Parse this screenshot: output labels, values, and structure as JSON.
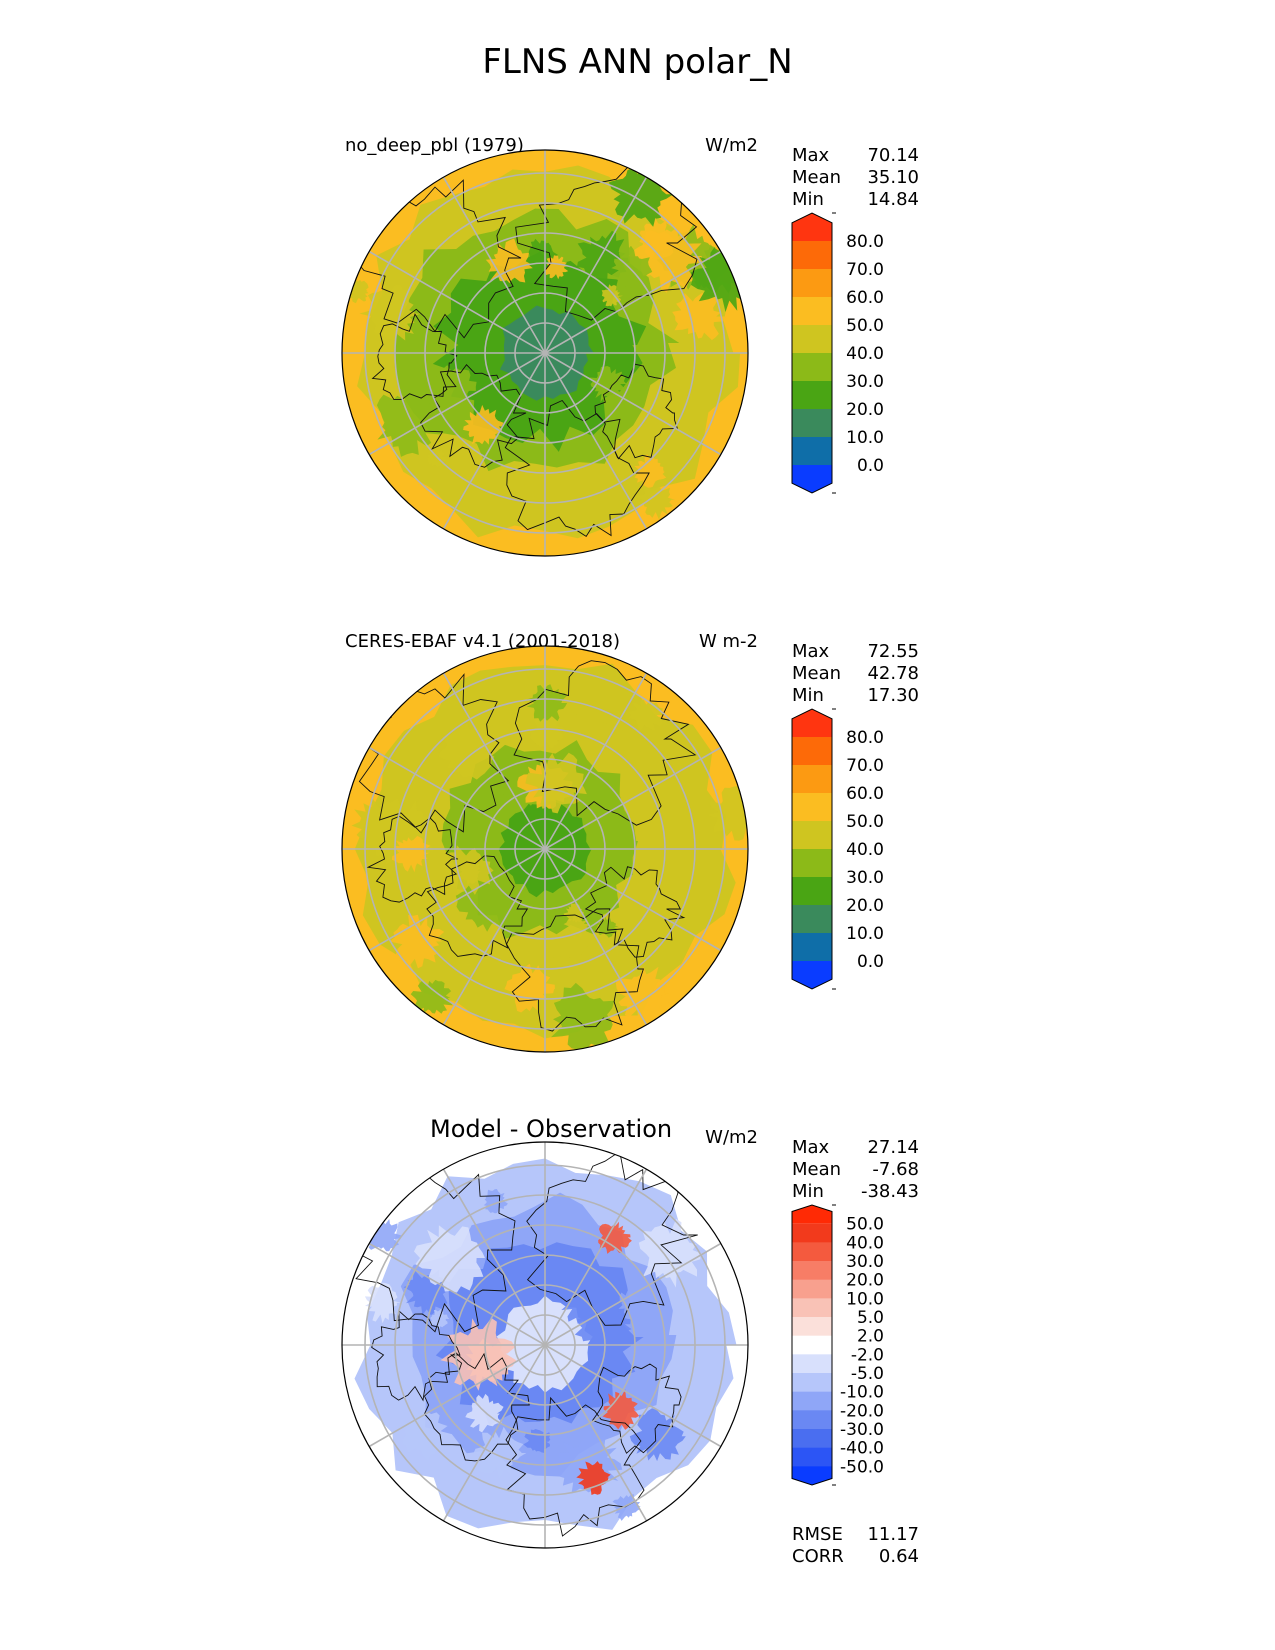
{
  "title": "FLNS ANN polar_N",
  "panels": [
    {
      "id": "model",
      "left_title": "no_deep_pbl (1979)",
      "units": "W/m2",
      "stats": [
        {
          "label": "Max",
          "value": "70.14"
        },
        {
          "label": "Mean",
          "value": "35.10"
        },
        {
          "label": "Min",
          "value": "14.84"
        }
      ]
    },
    {
      "id": "obs",
      "left_title": "CERES-EBAF v4.1 (2001-2018)",
      "units": "W m-2",
      "stats": [
        {
          "label": "Max",
          "value": "72.55"
        },
        {
          "label": "Mean",
          "value": "42.78"
        },
        {
          "label": "Min",
          "value": "17.30"
        }
      ]
    },
    {
      "id": "diff",
      "center_title": "Model - Observation",
      "units": "W/m2",
      "stats": [
        {
          "label": "Max",
          "value": "27.14"
        },
        {
          "label": "Mean",
          "value": "-7.68"
        },
        {
          "label": "Min",
          "value": "-38.43"
        }
      ],
      "extra_stats": [
        {
          "label": "RMSE",
          "value": "11.17"
        },
        {
          "label": "CORR",
          "value": "0.64"
        }
      ]
    }
  ],
  "chart_data": [
    {
      "type": "heatmap",
      "projection": "north polar stereographic",
      "colorbar": {
        "levels": [
          "0.0",
          "10.0",
          "20.0",
          "30.0",
          "40.0",
          "50.0",
          "60.0",
          "70.0",
          "80.0"
        ],
        "colors": [
          "#0a3cff",
          "#0f6ea8",
          "#3a8a5c",
          "#4aa514",
          "#8cba18",
          "#cfc520",
          "#fbbd21",
          "#fc9a12",
          "#fd6a08",
          "#ff3510"
        ],
        "extend": "both"
      },
      "colors_main": {
        "pole": "#3a8a5c",
        "inner": "#4aa514",
        "mid": "#8cba18",
        "outer": "#cfc520",
        "edge": "#fbbd21"
      }
    },
    {
      "type": "heatmap",
      "projection": "north polar stereographic",
      "colorbar": {
        "levels": [
          "0.0",
          "10.0",
          "20.0",
          "30.0",
          "40.0",
          "50.0",
          "60.0",
          "70.0",
          "80.0"
        ],
        "colors": [
          "#0a3cff",
          "#0f6ea8",
          "#3a8a5c",
          "#4aa514",
          "#8cba18",
          "#cfc520",
          "#fbbd21",
          "#fc9a12",
          "#fd6a08",
          "#ff3510"
        ],
        "extend": "both"
      },
      "colors_main": {
        "pole": "#4aa514",
        "inner": "#8cba18",
        "mid": "#cfc520",
        "outer": "#cfc520",
        "edge": "#fbbd21"
      }
    },
    {
      "type": "heatmap",
      "projection": "north polar stereographic",
      "colorbar": {
        "levels": [
          "-50.0",
          "-40.0",
          "-30.0",
          "-20.0",
          "-10.0",
          "-5.0",
          "-2.0",
          "2.0",
          "5.0",
          "10.0",
          "20.0",
          "30.0",
          "40.0",
          "50.0"
        ],
        "colors": [
          "#0a3cff",
          "#2c55f5",
          "#4a6ef0",
          "#6a88f3",
          "#8fa6f7",
          "#b6c6fa",
          "#d8e0fc",
          "#ffffff",
          "#fbe0da",
          "#f9c2b6",
          "#f8a08e",
          "#f77d66",
          "#f45a3e",
          "#f23a1c",
          "#ff2a05"
        ],
        "extend": "both"
      },
      "colors_main": {
        "pole": "#d8e0fc",
        "inner": "#6a88f3",
        "mid": "#8fa6f7",
        "outer": "#b6c6fa",
        "edge": "#ffffff"
      }
    }
  ]
}
